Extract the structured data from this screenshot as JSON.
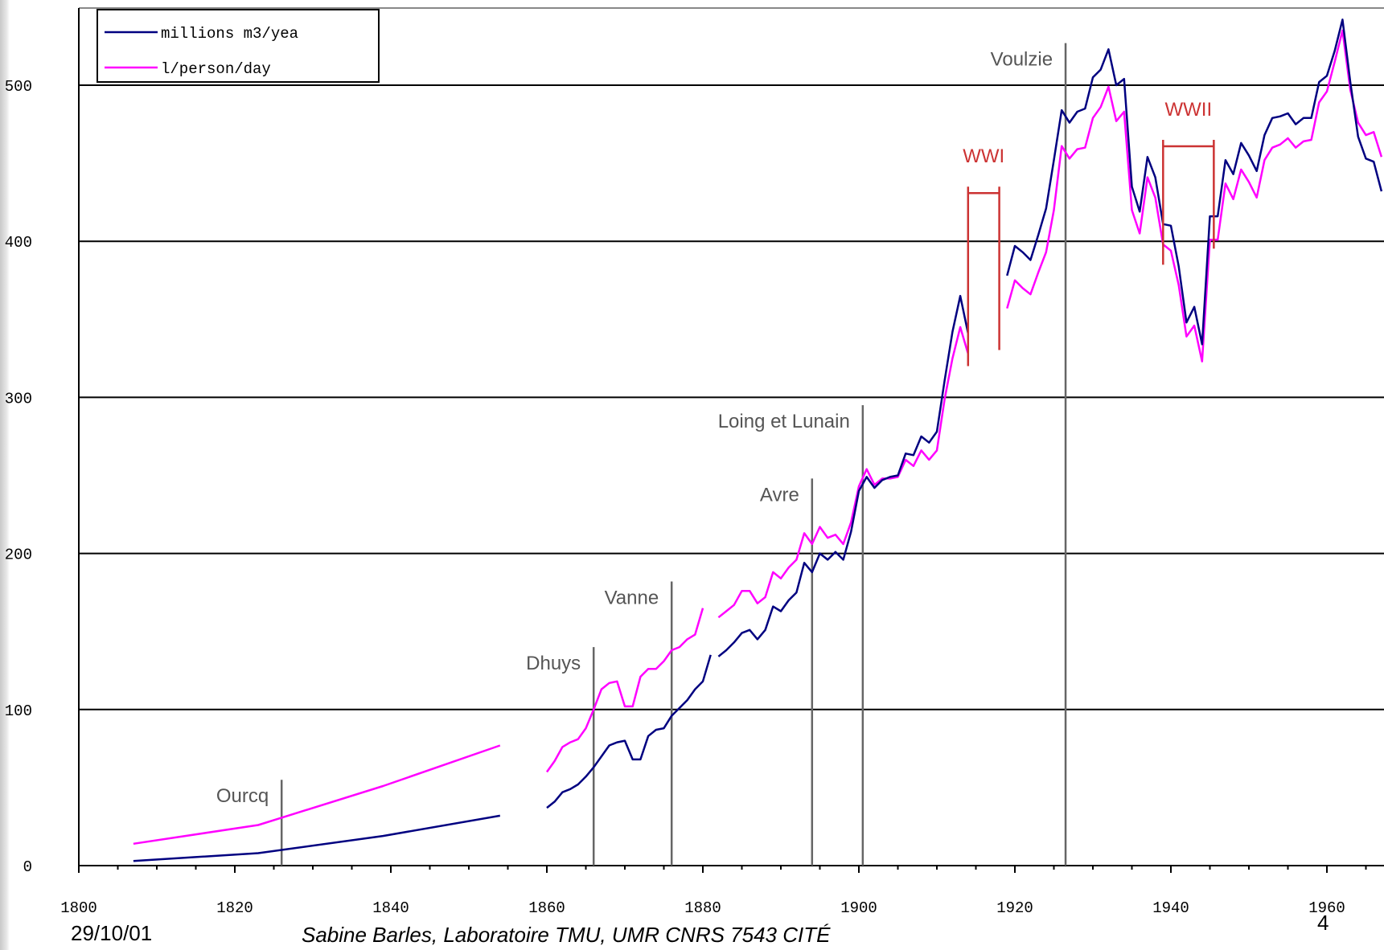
{
  "chart_data": {
    "type": "line",
    "x_range": [
      1800,
      1967
    ],
    "ylim": [
      0,
      550
    ],
    "grid": "horizontal",
    "legend_position": "top-left",
    "x_ticks": [
      "1800",
      "1820",
      "1840",
      "1860",
      "1880",
      "1900",
      "1920",
      "1940",
      "1960"
    ],
    "y_ticks": [
      "0",
      "100",
      "200",
      "300",
      "400",
      "500"
    ],
    "series": [
      {
        "name": "millions m3/yea",
        "color": "#000080",
        "segments": [
          [
            [
              1807,
              3
            ],
            [
              1823,
              8
            ],
            [
              1839,
              19
            ],
            [
              1854,
              32
            ]
          ],
          [
            [
              1860,
              37
            ],
            [
              1861,
              41
            ],
            [
              1862,
              47
            ],
            [
              1863,
              49
            ],
            [
              1864,
              52
            ],
            [
              1865,
              57
            ],
            [
              1866,
              63
            ],
            [
              1867,
              70
            ],
            [
              1868,
              77
            ],
            [
              1869,
              79
            ],
            [
              1870,
              80
            ],
            [
              1871,
              68
            ],
            [
              1872,
              68
            ],
            [
              1873,
              83
            ],
            [
              1874,
              87
            ],
            [
              1875,
              88
            ],
            [
              1876,
              96
            ],
            [
              1877,
              101
            ],
            [
              1878,
              106
            ],
            [
              1879,
              113
            ],
            [
              1880,
              118
            ],
            [
              1881,
              135
            ]
          ],
          [
            [
              1882,
              134
            ],
            [
              1883,
              138
            ],
            [
              1884,
              143
            ],
            [
              1885,
              149
            ],
            [
              1886,
              151
            ],
            [
              1887,
              145
            ],
            [
              1888,
              151
            ],
            [
              1889,
              166
            ],
            [
              1890,
              163
            ],
            [
              1891,
              170
            ],
            [
              1892,
              175
            ],
            [
              1893,
              194
            ],
            [
              1894,
              188
            ],
            [
              1895,
              200
            ],
            [
              1896,
              196
            ],
            [
              1897,
              201
            ],
            [
              1898,
              196
            ],
            [
              1899,
              214
            ],
            [
              1900,
              240
            ],
            [
              1901,
              249
            ],
            [
              1902,
              242
            ],
            [
              1903,
              247
            ],
            [
              1904,
              249
            ],
            [
              1905,
              250
            ],
            [
              1906,
              264
            ],
            [
              1907,
              263
            ],
            [
              1908,
              275
            ],
            [
              1909,
              271
            ],
            [
              1910,
              278
            ],
            [
              1911,
              311
            ],
            [
              1912,
              342
            ],
            [
              1913,
              365
            ],
            [
              1914,
              341
            ]
          ],
          [
            [
              1919,
              378
            ],
            [
              1920,
              397
            ],
            [
              1921,
              393
            ],
            [
              1922,
              388
            ],
            [
              1923,
              404
            ],
            [
              1924,
              421
            ],
            [
              1925,
              452
            ],
            [
              1926,
              484
            ],
            [
              1927,
              476
            ],
            [
              1928,
              483
            ],
            [
              1929,
              485
            ],
            [
              1930,
              505
            ],
            [
              1931,
              510
            ],
            [
              1932,
              523
            ],
            [
              1933,
              500
            ],
            [
              1934,
              504
            ],
            [
              1935,
              435
            ],
            [
              1936,
              419
            ],
            [
              1937,
              454
            ],
            [
              1938,
              441
            ],
            [
              1939,
              411
            ],
            [
              1940,
              410
            ],
            [
              1941,
              384
            ],
            [
              1942,
              348
            ],
            [
              1943,
              358
            ],
            [
              1944,
              334
            ],
            [
              1945,
              416
            ],
            [
              1946,
              416
            ],
            [
              1947,
              452
            ],
            [
              1948,
              443
            ],
            [
              1949,
              463
            ],
            [
              1950,
              455
            ],
            [
              1951,
              445
            ],
            [
              1952,
              468
            ],
            [
              1953,
              479
            ],
            [
              1954,
              480
            ],
            [
              1955,
              482
            ],
            [
              1956,
              475
            ],
            [
              1957,
              479
            ],
            [
              1958,
              479
            ],
            [
              1959,
              502
            ],
            [
              1960,
              506
            ],
            [
              1961,
              522
            ],
            [
              1962,
              542
            ],
            [
              1963,
              502
            ],
            [
              1964,
              467
            ],
            [
              1965,
              453
            ],
            [
              1966,
              451
            ],
            [
              1967,
              432
            ]
          ]
        ]
      },
      {
        "name": "l/person/day",
        "color": "#ff00ff",
        "segments": [
          [
            [
              1807,
              14
            ],
            [
              1823,
              26
            ],
            [
              1839,
              51
            ],
            [
              1854,
              77
            ]
          ],
          [
            [
              1860,
              60
            ],
            [
              1861,
              67
            ],
            [
              1862,
              76
            ],
            [
              1863,
              79
            ],
            [
              1864,
              81
            ],
            [
              1865,
              88
            ],
            [
              1866,
              100
            ],
            [
              1867,
              113
            ],
            [
              1868,
              117
            ],
            [
              1869,
              118
            ],
            [
              1870,
              102
            ],
            [
              1871,
              102
            ],
            [
              1872,
              121
            ],
            [
              1873,
              126
            ],
            [
              1874,
              126
            ],
            [
              1875,
              131
            ],
            [
              1876,
              138
            ],
            [
              1877,
              140
            ],
            [
              1878,
              145
            ],
            [
              1879,
              148
            ],
            [
              1880,
              165
            ]
          ],
          [
            [
              1882,
              159
            ],
            [
              1883,
              163
            ],
            [
              1884,
              167
            ],
            [
              1885,
              176
            ],
            [
              1886,
              176
            ],
            [
              1887,
              168
            ],
            [
              1888,
              172
            ],
            [
              1889,
              188
            ],
            [
              1890,
              184
            ],
            [
              1891,
              191
            ],
            [
              1892,
              196
            ],
            [
              1893,
              213
            ],
            [
              1894,
              206
            ],
            [
              1895,
              217
            ],
            [
              1896,
              210
            ],
            [
              1897,
              212
            ],
            [
              1898,
              206
            ],
            [
              1899,
              220
            ],
            [
              1900,
              243
            ],
            [
              1901,
              254
            ],
            [
              1902,
              244
            ],
            [
              1903,
              248
            ],
            [
              1904,
              248
            ],
            [
              1905,
              249
            ],
            [
              1906,
              260
            ],
            [
              1907,
              256
            ],
            [
              1908,
              266
            ],
            [
              1909,
              260
            ],
            [
              1910,
              266
            ],
            [
              1911,
              299
            ],
            [
              1912,
              325
            ],
            [
              1913,
              345
            ],
            [
              1914,
              328
            ]
          ],
          [
            [
              1919,
              357
            ],
            [
              1920,
              375
            ],
            [
              1921,
              370
            ],
            [
              1922,
              366
            ],
            [
              1923,
              380
            ],
            [
              1924,
              393
            ],
            [
              1925,
              420
            ],
            [
              1926,
              461
            ],
            [
              1927,
              453
            ],
            [
              1928,
              459
            ],
            [
              1929,
              460
            ],
            [
              1930,
              479
            ],
            [
              1931,
              486
            ],
            [
              1932,
              499
            ],
            [
              1933,
              477
            ],
            [
              1934,
              483
            ],
            [
              1935,
              420
            ],
            [
              1936,
              405
            ],
            [
              1937,
              441
            ],
            [
              1938,
              428
            ],
            [
              1939,
              398
            ],
            [
              1940,
              394
            ],
            [
              1941,
              372
            ],
            [
              1942,
              339
            ],
            [
              1943,
              346
            ],
            [
              1944,
              323
            ],
            [
              1945,
              401
            ],
            [
              1946,
              401
            ],
            [
              1947,
              437
            ],
            [
              1948,
              427
            ],
            [
              1949,
              446
            ],
            [
              1950,
              438
            ],
            [
              1951,
              428
            ],
            [
              1952,
              452
            ],
            [
              1953,
              460
            ],
            [
              1954,
              462
            ],
            [
              1955,
              466
            ],
            [
              1956,
              460
            ],
            [
              1957,
              464
            ],
            [
              1958,
              465
            ],
            [
              1959,
              489
            ],
            [
              1960,
              496
            ],
            [
              1961,
              515
            ],
            [
              1962,
              535
            ],
            [
              1963,
              497
            ],
            [
              1964,
              476
            ],
            [
              1965,
              468
            ],
            [
              1966,
              470
            ],
            [
              1967,
              454
            ]
          ]
        ]
      }
    ],
    "annotations": [
      {
        "label": "Ourcq",
        "x": 1826,
        "top": 55
      },
      {
        "label": "Dhuys",
        "x": 1866,
        "top": 140
      },
      {
        "label": "Vanne",
        "x": 1876,
        "top": 182
      },
      {
        "label": "Avre",
        "x": 1894,
        "top": 248
      },
      {
        "label": "Loing et Lunain",
        "x": 1900.5,
        "top": 295
      },
      {
        "label": "Voulzie",
        "x": 1926.5,
        "top": 527
      }
    ],
    "periods": [
      {
        "label": "WWI",
        "start": 1914,
        "end": 1918,
        "low": 320,
        "high": 435
      },
      {
        "label": "WWII",
        "start": 1939,
        "end": 1945.5,
        "low": 385,
        "high": 465
      }
    ],
    "colors": {
      "grid": "#000000",
      "annotation_line": "#666666",
      "annotation_text": "#555555",
      "period": "#cc3333"
    }
  },
  "footer": {
    "date": "29/10/01",
    "author": "Sabine Barles, Laboratoire TMU, UMR CNRS 7543 CITÉ",
    "page": "4"
  }
}
